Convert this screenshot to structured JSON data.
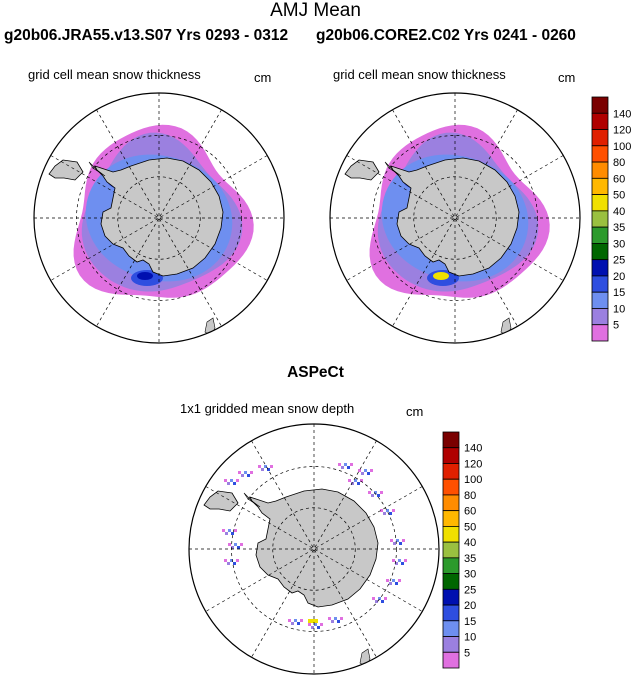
{
  "header": {
    "title": "AMJ Mean",
    "case_left": "g20b06.JRA55.v13.S07  Yrs 0293 - 0312",
    "case_right": "g20b06.CORE2.C02  Yrs 0241 - 0260"
  },
  "panels": {
    "left": {
      "title": "grid cell mean snow thickness",
      "unit": "cm"
    },
    "right": {
      "title": "grid cell mean snow thickness",
      "unit": "cm"
    },
    "bottom": {
      "heading": "ASPeCt",
      "title": "1x1 gridded mean snow depth",
      "unit": "cm"
    }
  },
  "colorbar": {
    "labels": [
      "140",
      "120",
      "100",
      "80",
      "60",
      "50",
      "40",
      "35",
      "30",
      "25",
      "20",
      "15",
      "10",
      "5"
    ],
    "colors": [
      "#7a0000",
      "#b00000",
      "#e02000",
      "#ff5000",
      "#ff8c00",
      "#ffb800",
      "#f0e000",
      "#9ac040",
      "#2c9a2c",
      "#006600",
      "#0010b0",
      "#2e4ee0",
      "#6e8ff0",
      "#9b80e0",
      "#e070e0"
    ]
  },
  "map": {
    "land_color": "#c8c8c8",
    "ice_color": "#e070e0"
  }
}
